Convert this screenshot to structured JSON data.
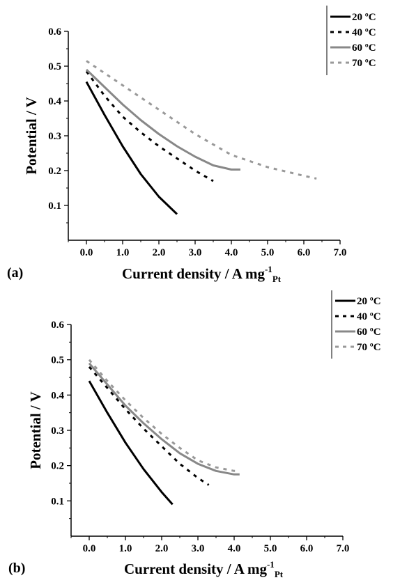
{
  "chart_data": [
    {
      "panel_label": "(a)",
      "type": "line",
      "xlabel": "Current density / A mg",
      "xlabel_sup": "-1",
      "xlabel_sub": "Pt",
      "ylabel": "Potential / V",
      "xlim": [
        -0.5,
        7.0
      ],
      "ylim": [
        0.0,
        0.6
      ],
      "xticks": [
        "0.0",
        "1.0",
        "2.0",
        "3.0",
        "4.0",
        "5.0",
        "6.0",
        "7.0"
      ],
      "yticks": [
        "0.1",
        "0.2",
        "0.3",
        "0.4",
        "0.5",
        "0.6"
      ],
      "legend_position": "top-right",
      "series": [
        {
          "name": "20 ºC",
          "color": "#000000",
          "dash": "solid",
          "x": [
            0.0,
            0.5,
            1.0,
            1.5,
            2.0,
            2.5
          ],
          "y": [
            0.455,
            0.36,
            0.27,
            0.19,
            0.125,
            0.075
          ]
        },
        {
          "name": "40 ºC",
          "color": "#000000",
          "dash": "dashed",
          "x": [
            0.0,
            0.5,
            1.0,
            1.5,
            2.0,
            2.5,
            3.0,
            3.5
          ],
          "y": [
            0.485,
            0.415,
            0.355,
            0.31,
            0.27,
            0.235,
            0.2,
            0.17
          ]
        },
        {
          "name": "60 ºC",
          "color": "#888888",
          "dash": "solid",
          "x": [
            0.0,
            0.5,
            1.0,
            1.5,
            2.0,
            2.5,
            3.0,
            3.5,
            4.0,
            4.25
          ],
          "y": [
            0.49,
            0.44,
            0.39,
            0.345,
            0.305,
            0.27,
            0.24,
            0.215,
            0.203,
            0.203
          ]
        },
        {
          "name": "70 ºC",
          "color": "#999999",
          "dash": "dashed",
          "x": [
            0.0,
            1.0,
            2.0,
            3.0,
            4.0,
            5.0,
            6.0,
            6.35
          ],
          "y": [
            0.515,
            0.445,
            0.375,
            0.305,
            0.245,
            0.21,
            0.185,
            0.177
          ]
        }
      ]
    },
    {
      "panel_label": "(b)",
      "type": "line",
      "xlabel": "Current density / A mg",
      "xlabel_sup": "-1",
      "xlabel_sub": "Pt",
      "ylabel": "Potential / V",
      "xlim": [
        -0.5,
        7.0
      ],
      "ylim": [
        0.0,
        0.6
      ],
      "xticks": [
        "0.0",
        "1.0",
        "2.0",
        "3.0",
        "4.0",
        "5.0",
        "6.0",
        "7.0"
      ],
      "yticks": [
        "0.1",
        "0.2",
        "0.3",
        "0.4",
        "0.5",
        "0.6"
      ],
      "legend_position": "top-right",
      "series": [
        {
          "name": "20 ºC",
          "color": "#000000",
          "dash": "solid",
          "x": [
            0.0,
            0.5,
            1.0,
            1.5,
            2.0,
            2.3
          ],
          "y": [
            0.44,
            0.35,
            0.265,
            0.19,
            0.125,
            0.09
          ]
        },
        {
          "name": "40 ºC",
          "color": "#000000",
          "dash": "dashed",
          "x": [
            0.0,
            0.5,
            1.0,
            1.5,
            2.0,
            2.5,
            3.0,
            3.3
          ],
          "y": [
            0.48,
            0.42,
            0.36,
            0.305,
            0.255,
            0.205,
            0.165,
            0.145
          ]
        },
        {
          "name": "60 ºC",
          "color": "#888888",
          "dash": "solid",
          "x": [
            0.0,
            0.5,
            1.0,
            1.5,
            2.0,
            2.5,
            3.0,
            3.5,
            4.0,
            4.15
          ],
          "y": [
            0.49,
            0.43,
            0.37,
            0.32,
            0.275,
            0.235,
            0.205,
            0.185,
            0.175,
            0.175
          ]
        },
        {
          "name": "70 ºC",
          "color": "#999999",
          "dash": "dashed",
          "x": [
            0.0,
            0.5,
            1.0,
            1.5,
            2.0,
            2.5,
            3.0,
            3.5,
            4.0,
            4.15
          ],
          "y": [
            0.5,
            0.44,
            0.385,
            0.335,
            0.29,
            0.25,
            0.215,
            0.195,
            0.185,
            0.185
          ]
        }
      ]
    }
  ]
}
